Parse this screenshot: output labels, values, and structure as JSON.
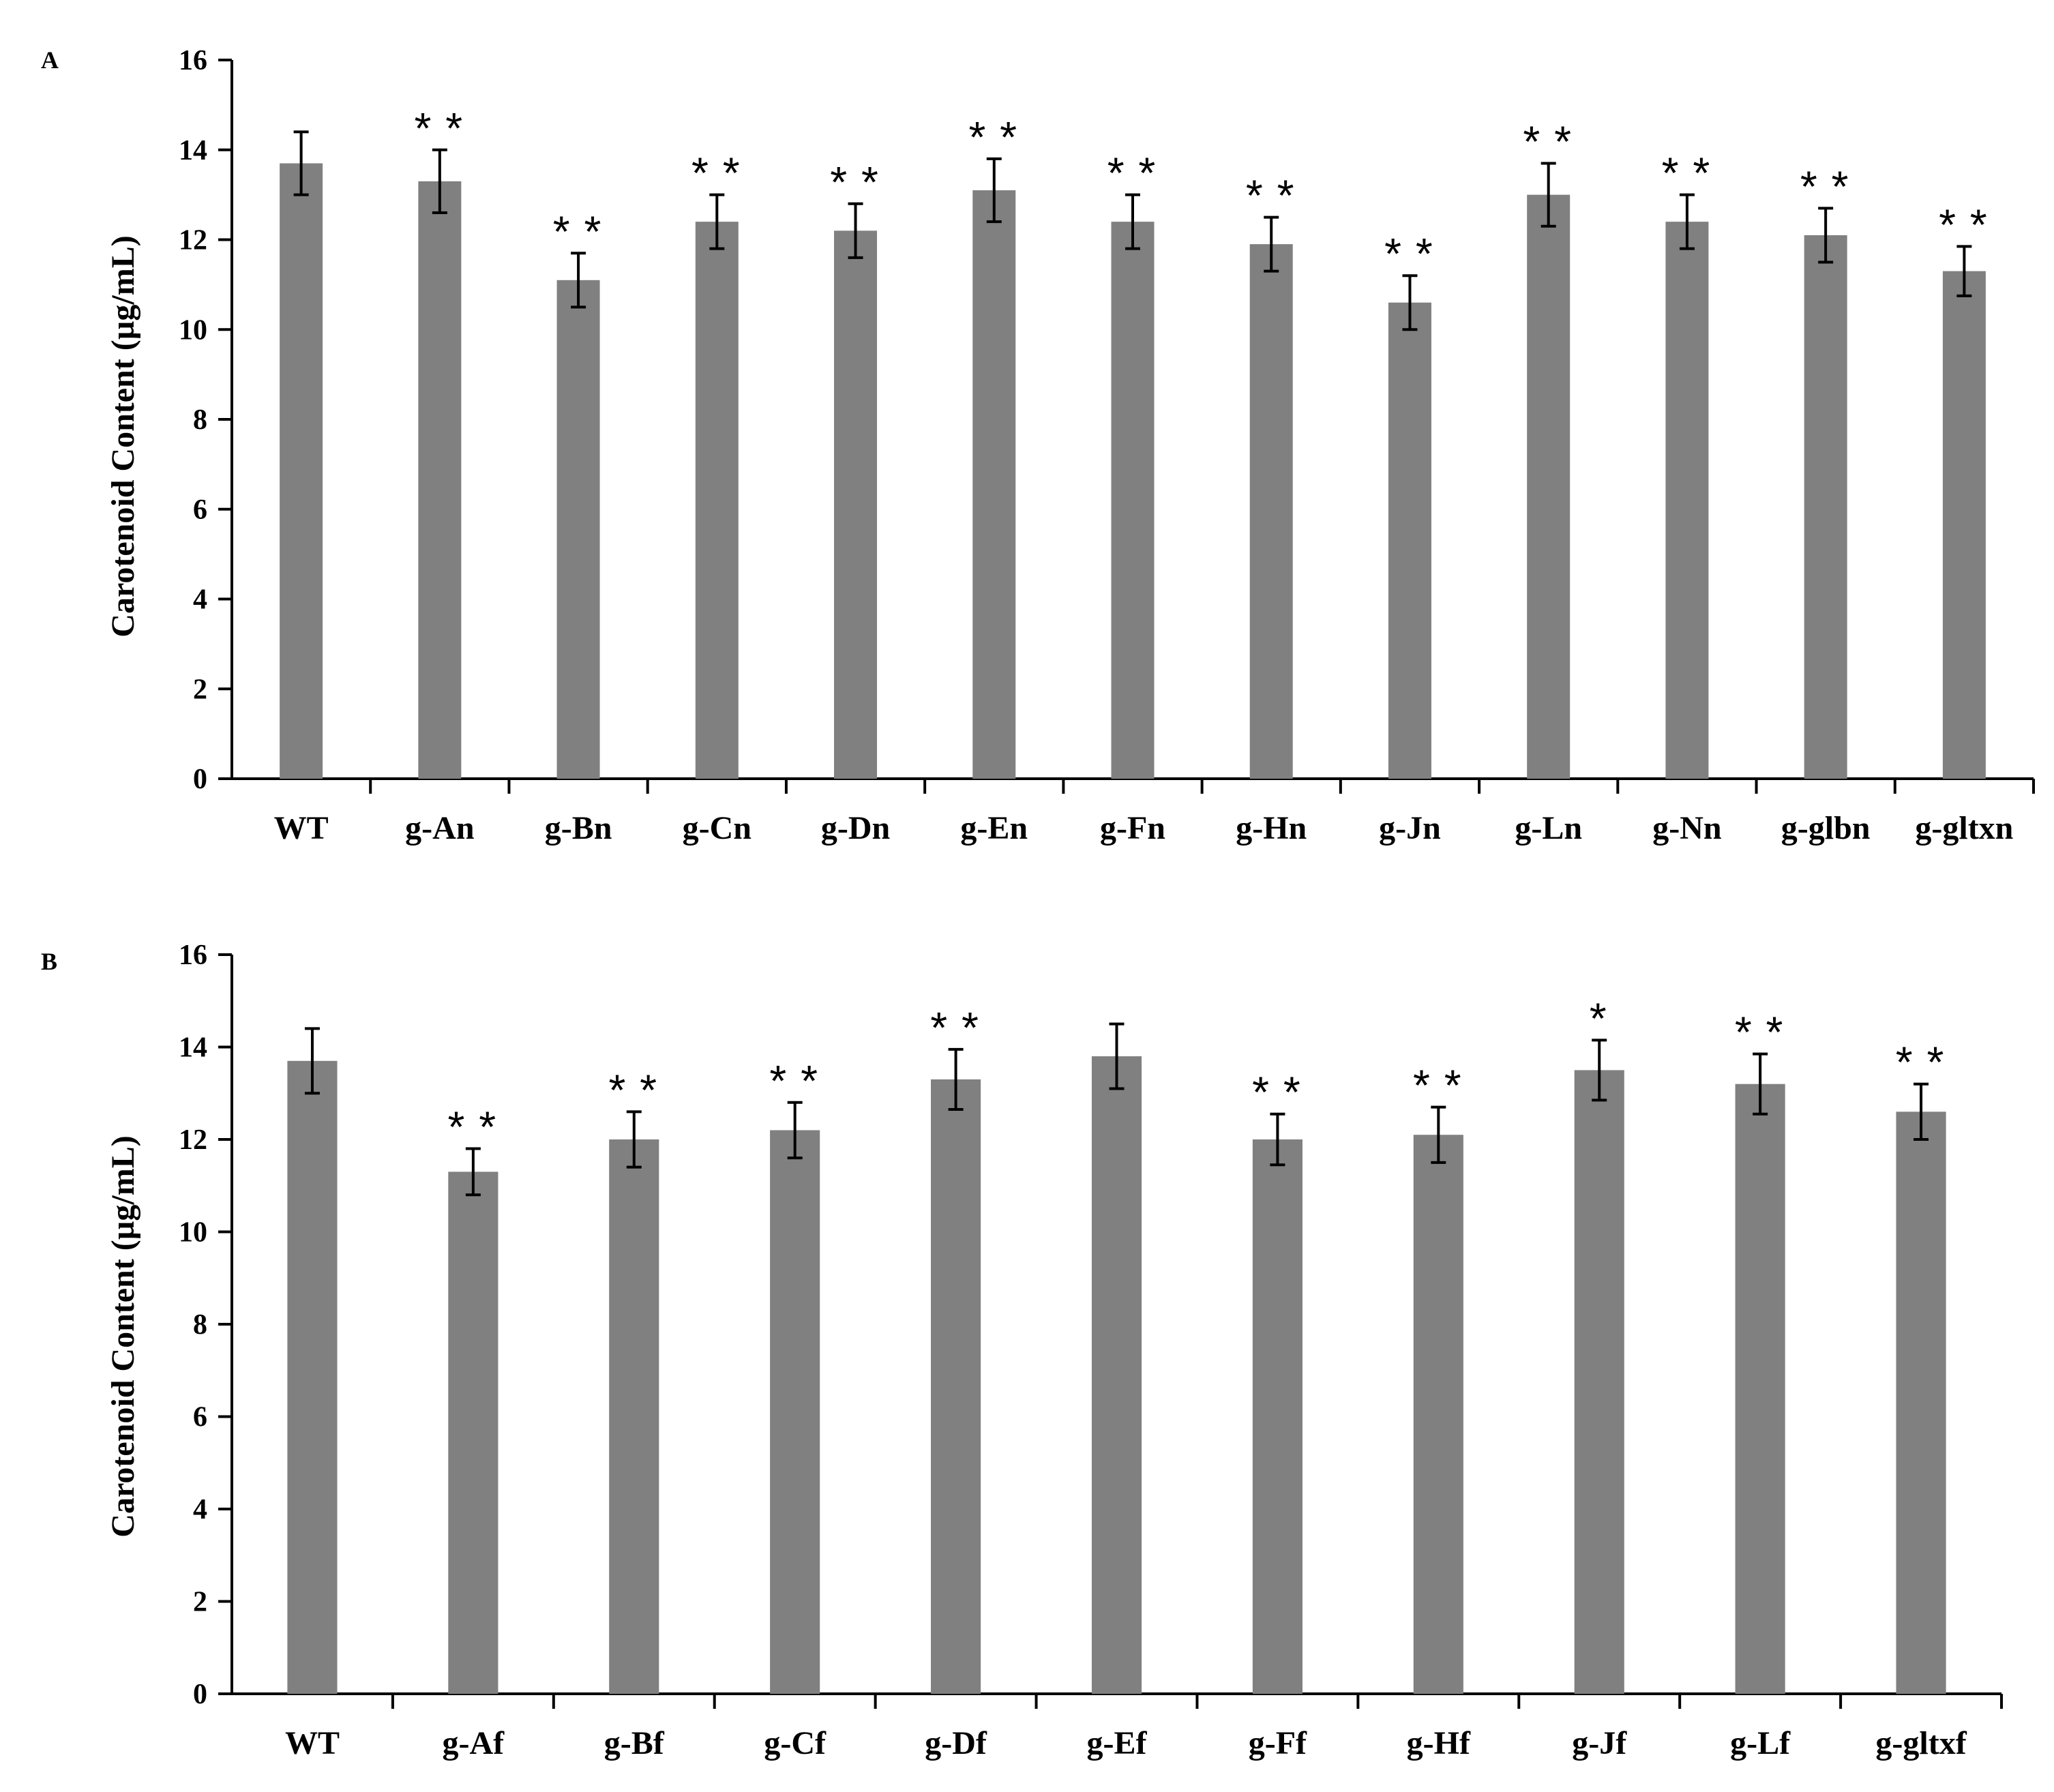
{
  "chart_data": [
    {
      "panel": "A",
      "type": "bar",
      "title": "",
      "ylabel": "Carotenoid Content (µg/mL)",
      "xlabel": "",
      "ylim": [
        0,
        16
      ],
      "yticks": [
        0,
        2,
        4,
        6,
        8,
        10,
        12,
        14,
        16
      ],
      "grid": false,
      "bar_color": "#808080",
      "categories": [
        "WT",
        "g-An",
        "g-Bn",
        "g-Cn",
        "g-Dn",
        "g-En",
        "g-Fn",
        "g-Hn",
        "g-Jn",
        "g-Ln",
        "g-Nn",
        "g-glbn",
        "g-gltxn"
      ],
      "values": [
        13.7,
        13.3,
        11.1,
        12.4,
        12.2,
        13.1,
        12.4,
        11.9,
        10.6,
        13.0,
        12.4,
        12.1,
        11.3
      ],
      "errors": [
        0.7,
        0.7,
        0.6,
        0.6,
        0.6,
        0.7,
        0.6,
        0.6,
        0.6,
        0.7,
        0.6,
        0.6,
        0.55
      ],
      "significance": [
        "",
        "**",
        "**",
        "**",
        "**",
        "**",
        "**",
        "**",
        "**",
        "**",
        "**",
        "**",
        "**"
      ]
    },
    {
      "panel": "B",
      "type": "bar",
      "title": "",
      "ylabel": "Carotenoid Content (µg/mL)",
      "xlabel": "",
      "ylim": [
        0,
        16
      ],
      "yticks": [
        0,
        2,
        4,
        6,
        8,
        10,
        12,
        14,
        16
      ],
      "grid": false,
      "bar_color": "#808080",
      "categories": [
        "WT",
        "g-Af",
        "g-Bf",
        "g-Cf",
        "g-Df",
        "g-Ef",
        "g-Ff",
        "g-Hf",
        "g-Jf",
        "g-Lf",
        "g-gltxf"
      ],
      "values": [
        13.7,
        11.3,
        12.0,
        12.2,
        13.3,
        13.8,
        12.0,
        12.1,
        13.5,
        13.2,
        12.6
      ],
      "errors": [
        0.7,
        0.5,
        0.6,
        0.6,
        0.65,
        0.7,
        0.55,
        0.6,
        0.65,
        0.65,
        0.6
      ],
      "significance": [
        "",
        "**",
        "**",
        "**",
        "**",
        "",
        "**",
        "**",
        "*",
        "**",
        "**"
      ]
    }
  ]
}
